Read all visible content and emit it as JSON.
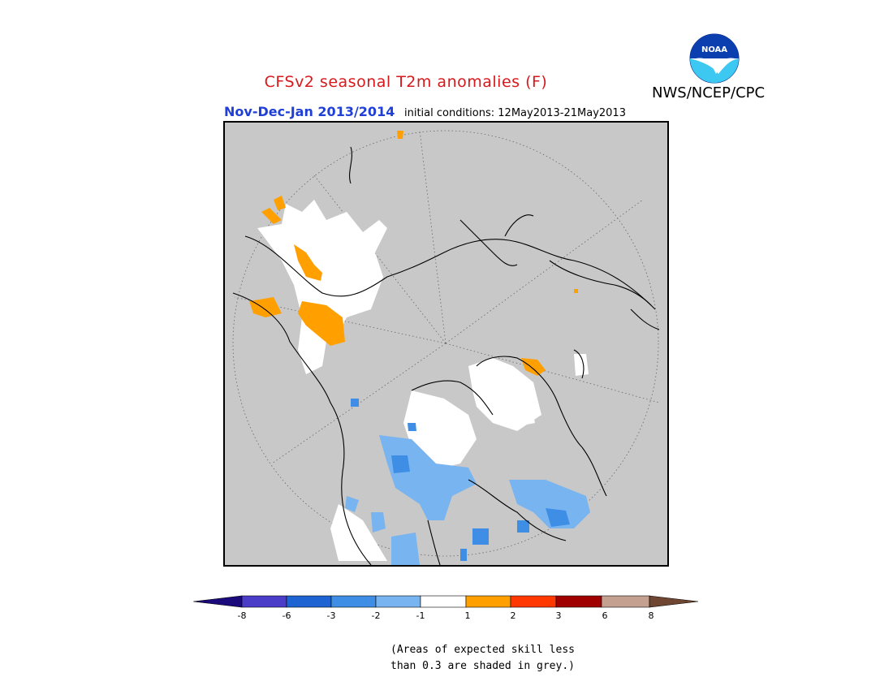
{
  "header": {
    "title": "CFSv2 seasonal T2m anomalies (F)",
    "period": "Nov-Dec-Jan 2013/2014",
    "initial_conditions": "initial conditions: 12May2013-21May2013",
    "agency": "NWS/NCEP/CPC",
    "logo_text": "NOAA"
  },
  "legend": {
    "ticks": [
      "-8",
      "-6",
      "-3",
      "-2",
      "-1",
      "1",
      "2",
      "3",
      "6",
      "8"
    ],
    "colors": [
      "#1a0a7a",
      "#4b3dc8",
      "#1e63d2",
      "#3f8ee6",
      "#78b4f0",
      "#ffffff",
      "#ffa000",
      "#ff3700",
      "#a00000",
      "#c3a090",
      "#6e4632"
    ]
  },
  "note": {
    "line1": "(Areas of expected skill less",
    "line2": "than 0.3 are shaded in grey.)"
  },
  "map": {
    "background": "#c8c8c8",
    "projection": "north-polar-stereographic"
  }
}
